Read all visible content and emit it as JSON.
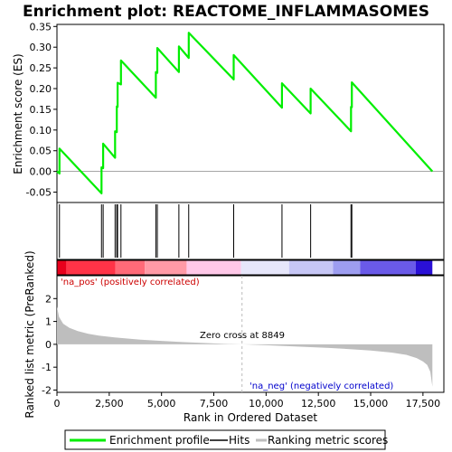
{
  "chart_data": {
    "type": "line",
    "title": "Enrichment plot: REACTOME_INFLAMMASOMES",
    "xlabel": "Rank in Ordered Dataset",
    "ylabel_top": "Enrichment score (ES)",
    "ylabel_bottom": "Ranked list metric (PreRanked)",
    "xlim": [
      0,
      18500
    ],
    "x_ticks": [
      0,
      2500,
      5000,
      7500,
      10000,
      12500,
      15000,
      17500
    ],
    "x_tick_labels": [
      "0",
      "2,500",
      "5,000",
      "7,500",
      "10,000",
      "12,500",
      "15,000",
      "17,500"
    ],
    "es_ylim": [
      -0.075,
      0.355
    ],
    "es_ticks": [
      -0.05,
      0.0,
      0.05,
      0.1,
      0.15,
      0.2,
      0.25,
      0.3,
      0.35
    ],
    "es_tick_labels": [
      "-0.05",
      "0.00",
      "0.05",
      "0.10",
      "0.15",
      "0.20",
      "0.25",
      "0.30",
      "0.35"
    ],
    "metric_ylim": [
      -2.1,
      3.0
    ],
    "metric_ticks": [
      -2,
      -1,
      0,
      1,
      2
    ],
    "metric_tick_labels": [
      "-2",
      "-1",
      "0",
      "1",
      "2"
    ],
    "hits": [
      120,
      2130,
      2210,
      2780,
      2860,
      2900,
      3060,
      4730,
      4800,
      5830,
      6300,
      8450,
      10760,
      12130,
      14060,
      14100
    ],
    "es_series": {
      "name": "Enrichment profile",
      "x": [
        0,
        120,
        120,
        2130,
        2130,
        2210,
        2210,
        2780,
        2780,
        2860,
        2860,
        2900,
        2900,
        3060,
        3060,
        4730,
        4730,
        4800,
        4800,
        5830,
        5830,
        6300,
        6300,
        8450,
        8450,
        10760,
        10760,
        12130,
        12130,
        14060,
        14060,
        14100,
        14100,
        17950
      ],
      "y": [
        0.0,
        -0.005,
        0.055,
        -0.053,
        0.01,
        0.008,
        0.067,
        0.033,
        0.097,
        0.095,
        0.157,
        0.156,
        0.214,
        0.21,
        0.268,
        0.178,
        0.24,
        0.238,
        0.298,
        0.24,
        0.302,
        0.274,
        0.335,
        0.222,
        0.281,
        0.154,
        0.213,
        0.14,
        0.2,
        0.097,
        0.156,
        0.155,
        0.215,
        0.0
      ]
    },
    "metric_profile": {
      "x": [
        0,
        100,
        300,
        600,
        1000,
        1500,
        2000,
        3000,
        4000,
        5000,
        6000,
        7000,
        8000,
        8849,
        10000,
        11000,
        12000,
        13000,
        14000,
        15000,
        16000,
        16700,
        17200,
        17500,
        17700,
        17850,
        17950
      ],
      "y": [
        1.65,
        1.2,
        0.9,
        0.72,
        0.58,
        0.46,
        0.38,
        0.28,
        0.2,
        0.15,
        0.1,
        0.06,
        0.02,
        0.0,
        -0.04,
        -0.08,
        -0.12,
        -0.16,
        -0.21,
        -0.27,
        -0.36,
        -0.46,
        -0.6,
        -0.75,
        -0.9,
        -1.2,
        -1.85
      ]
    },
    "heat_segments": [
      {
        "from": 0,
        "to": 450,
        "color": "#e8001c"
      },
      {
        "from": 450,
        "to": 2800,
        "color": "#ff3347"
      },
      {
        "from": 2800,
        "to": 4200,
        "color": "#ff6a78"
      },
      {
        "from": 4200,
        "to": 6200,
        "color": "#ff9aa6"
      },
      {
        "from": 6200,
        "to": 8800,
        "color": "#ffc8e8"
      },
      {
        "from": 8800,
        "to": 11100,
        "color": "#e6e6fa"
      },
      {
        "from": 11100,
        "to": 13200,
        "color": "#c6c6f5"
      },
      {
        "from": 13200,
        "to": 14500,
        "color": "#9d9df0"
      },
      {
        "from": 14500,
        "to": 17150,
        "color": "#6a5ae8"
      },
      {
        "from": 17150,
        "to": 17950,
        "color": "#2a10d6"
      }
    ],
    "zero_cross": 8849,
    "annotations": {
      "pos": "'na_pos' (positively correlated)",
      "neg": "'na_neg' (negatively correlated)",
      "zero": "Zero cross at 8849"
    },
    "legend": {
      "position": "bottom",
      "items": [
        "Enrichment profile",
        "Hits",
        "Ranking metric scores"
      ]
    },
    "colors": {
      "es_line": "#00ee00",
      "hits": "#000000",
      "metric_fill": "#bebebe",
      "pos_text": "#cc0000",
      "neg_text": "#0000cc",
      "zero_line": "#bbbbbb"
    }
  }
}
